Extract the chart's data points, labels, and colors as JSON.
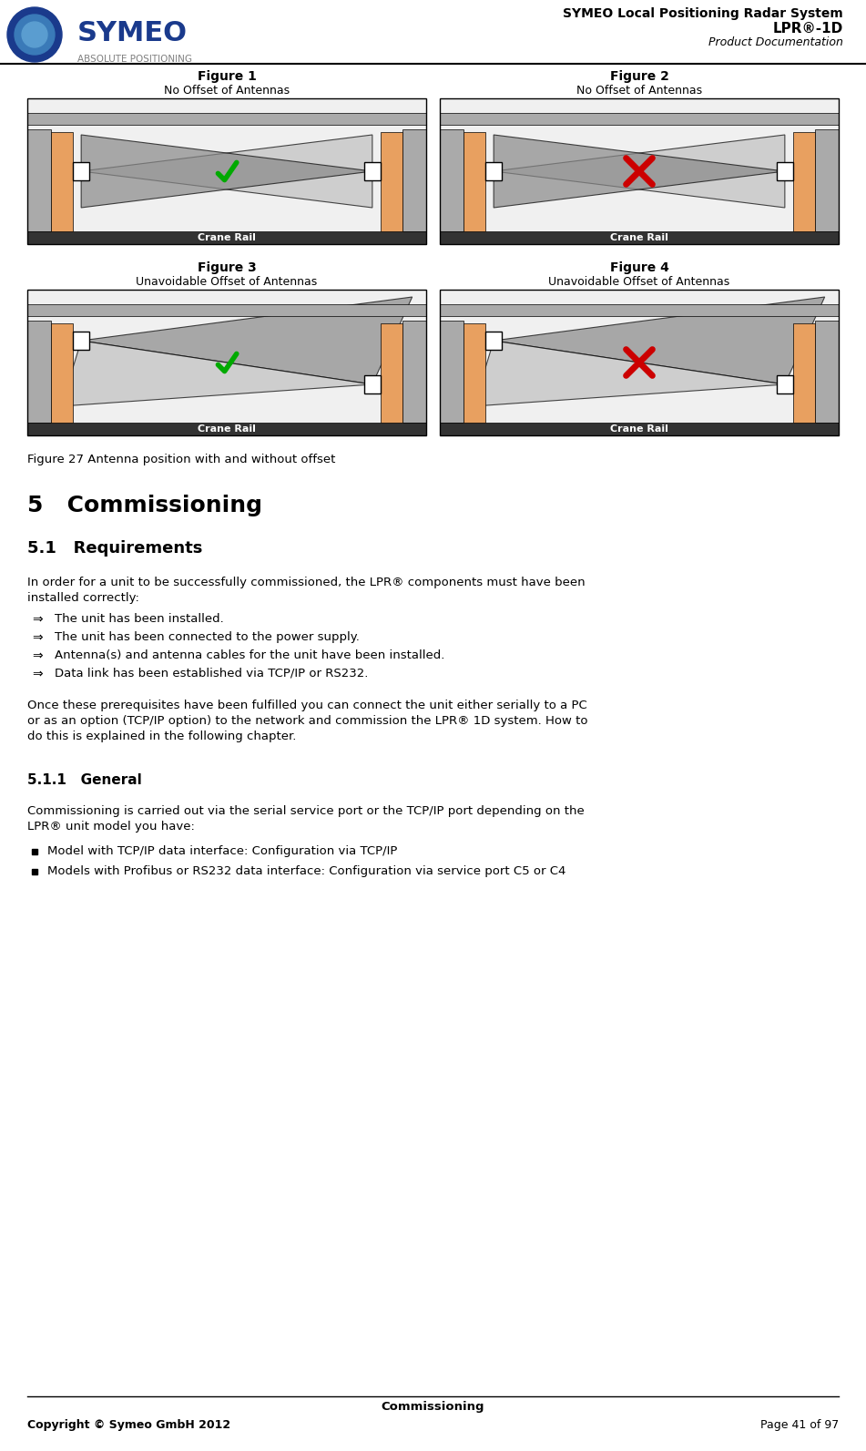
{
  "title_line1": "SYMEO Local Positioning Radar System",
  "title_line2": "LPR®-1D",
  "title_line3": "Product Documentation",
  "footer_center": "Commissioning",
  "footer_left": "Copyright © Symeo GmbH 2012",
  "footer_right": "Page 41 of 97",
  "fig_caption": "Figure 27 Antenna position with and without offset",
  "section_title": "5   Commissioning",
  "sub_title": "5.1   Requirements",
  "sub_sub_title": "5.1.1   General",
  "body_text1": "In order for a unit to be successfully commissioned, the LPR® components must have been\ninstalled correctly:",
  "bullets": [
    "The unit has been installed.",
    "The unit has been connected to the power supply.",
    "Antenna(s) and antenna cables for the unit have been installed.",
    "Data link has been established via TCP/IP or RS232."
  ],
  "body_text2": "Once these prerequisites have been fulfilled you can connect the unit either serially to a PC\nor as an option (TCP/IP option) to the network and commission the LPR® 1D system. How to\ndo this is explained in the following chapter.",
  "general_text": "Commissioning is carried out via the serial service port or the TCP/IP port depending on the\nLPR® unit model you have:",
  "bullet2": [
    "Model with TCP/IP data interface: Configuration via TCP/IP",
    "Models with Profibus or RS232 data interface: Configuration via service port C5 or C4"
  ],
  "fig1_title": "Figure 1",
  "fig1_sub": "No Offset of Antennas",
  "fig2_title": "Figure 2",
  "fig2_sub": "No Offset of Antennas",
  "fig3_title": "Figure 3",
  "fig3_sub": "Unavoidable Offset of Antennas",
  "fig4_title": "Figure 4",
  "fig4_sub": "Unavoidable Offset of Antennas",
  "crane_rail": "Crane Rail",
  "bg_color": "#ffffff",
  "header_line_color": "#000000",
  "orange_color": "#e8a060",
  "dark_gray": "#808080",
  "light_gray": "#c0c0c0",
  "lighter_gray": "#d8d8d8",
  "black_color": "#000000",
  "green_check_color": "#00aa00",
  "red_x_color": "#cc0000"
}
